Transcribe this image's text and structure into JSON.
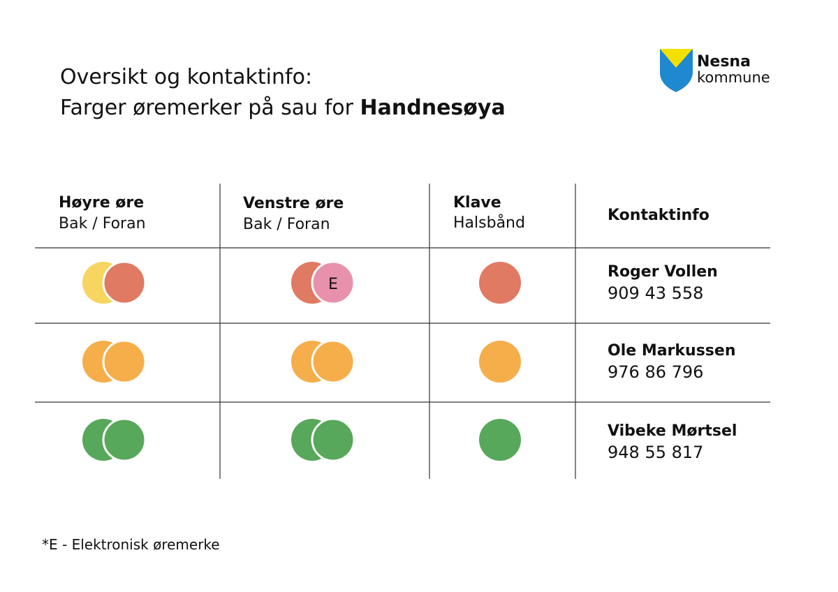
{
  "header": {
    "title_line1": "Oversikt og kontaktinfo:",
    "title_line2": "Farger øremerker på sau for",
    "title_place": "Handnesøya"
  },
  "logo": {
    "name": "Nesna",
    "subtitle": "kommune"
  },
  "table": {
    "columns": [
      {
        "title": "Høyre øre",
        "subtitle": "Bak / Foran"
      },
      {
        "title": "Venstre øre",
        "subtitle": "Bak / Foran"
      },
      {
        "title": "Klave",
        "subtitle": "Halsbånd"
      },
      {
        "title": "Kontaktinfo"
      }
    ],
    "electronic_mark": "E",
    "rows": [
      {
        "name": "Roger Vollen",
        "phone": "909 43 558"
      },
      {
        "name": "Ole Markussen",
        "phone": "976 86 796"
      },
      {
        "name": "Vibeke Mørtsel",
        "phone": "948 55 817"
      }
    ]
  },
  "footnote": "*E - Elektronisk øremerke"
}
